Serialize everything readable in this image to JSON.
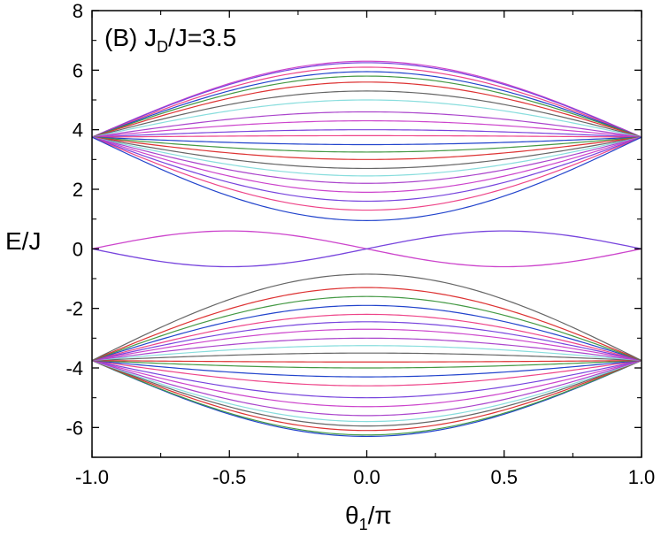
{
  "chart_data": {
    "type": "line",
    "title": "(B) J",
    "title_sub": "D",
    "title_rest": "/J=3.5",
    "xlabel": "θ",
    "xlabel_sub": "1",
    "xlabel_rest": "/π",
    "ylabel": "E/J",
    "xlim": [
      -1.0,
      1.0
    ],
    "ylim": [
      -7,
      8
    ],
    "xticks": [
      "-1.0",
      "-0.5",
      "0.0",
      "0.5",
      "1.0"
    ],
    "yticks": [
      "8",
      "6",
      "4",
      "2",
      "0",
      "-2",
      "-4",
      "-6"
    ],
    "grid": false,
    "legend": "none",
    "palette": [
      "#cc44cc",
      "#7744dd",
      "#ee4488",
      "#2244cc",
      "#449944",
      "#dd3333",
      "#666666",
      "#88dddd",
      "#aa44cc"
    ],
    "upper_band": {
      "edge_value": 3.75,
      "center_values": [
        6.3,
        6.25,
        6.1,
        5.95,
        5.8,
        5.6,
        5.3,
        5.0,
        4.6,
        4.3,
        4.0,
        3.8,
        3.5,
        3.25,
        3.0,
        2.7,
        2.45,
        2.2,
        1.9,
        1.6,
        1.3,
        0.95
      ]
    },
    "lower_band": {
      "edge_value": -3.75,
      "center_values": [
        -6.3,
        -6.25,
        -6.1,
        -5.95,
        -5.8,
        -5.6,
        -5.3,
        -5.0,
        -4.6,
        -4.3,
        -4.0,
        -3.8,
        -3.5,
        -3.25,
        -3.0,
        -2.7,
        -2.45,
        -2.2,
        -1.9,
        -1.6,
        -1.3,
        -0.85
      ]
    },
    "edge_states": {
      "peak_value": 0.6,
      "peak_x": 0.45
    }
  }
}
